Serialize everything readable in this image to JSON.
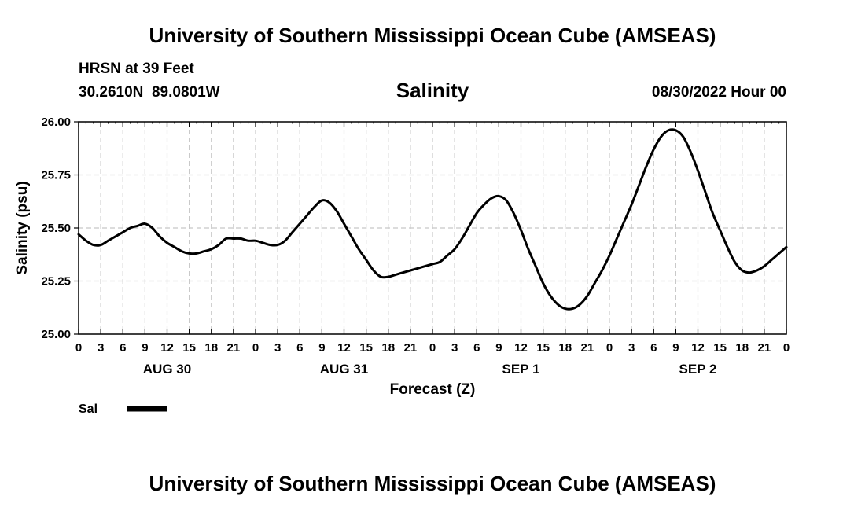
{
  "header": {
    "title": "University of Southern Mississippi Ocean Cube (AMSEAS)",
    "station": "HRSN at 39 Feet",
    "coords": "30.2610N  89.0801W",
    "variable": "Salinity",
    "datetime": "08/30/2022 Hour 00"
  },
  "footer": {
    "title": "University of Southern Mississippi Ocean Cube (AMSEAS)"
  },
  "legend": {
    "label": "Sal"
  },
  "chart_data": {
    "type": "line",
    "title": "Salinity",
    "xlabel": "Forecast (Z)",
    "ylabel": "Salinity (psu)",
    "xlim": [
      0,
      96
    ],
    "ylim": [
      25.0,
      26.0
    ],
    "yticks": [
      "25.00",
      "25.25",
      "25.50",
      "25.75",
      "26.00"
    ],
    "ytick_values": [
      25.0,
      25.25,
      25.5,
      25.75,
      26.0
    ],
    "xtick_labels": [
      "0",
      "3",
      "6",
      "9",
      "12",
      "15",
      "18",
      "21",
      "0",
      "3",
      "6",
      "9",
      "12",
      "15",
      "18",
      "21",
      "0",
      "3",
      "6",
      "9",
      "12",
      "15",
      "18",
      "21",
      "0",
      "3",
      "6",
      "9",
      "12",
      "15",
      "18",
      "21",
      "0"
    ],
    "day_labels": [
      {
        "label": "AUG 30",
        "hour": 12
      },
      {
        "label": "AUG 31",
        "hour": 36
      },
      {
        "label": "SEP 1",
        "hour": 60
      },
      {
        "label": "SEP 2",
        "hour": 84
      }
    ],
    "grid": true,
    "series": [
      {
        "name": "Sal",
        "x": [
          0,
          1,
          2,
          3,
          4,
          5,
          6,
          7,
          8,
          9,
          10,
          11,
          12,
          13,
          14,
          15,
          16,
          17,
          18,
          19,
          20,
          21,
          22,
          23,
          24,
          25,
          26,
          27,
          28,
          29,
          30,
          31,
          32,
          33,
          34,
          35,
          36,
          37,
          38,
          39,
          40,
          41,
          42,
          43,
          44,
          45,
          46,
          47,
          48,
          49,
          50,
          51,
          52,
          53,
          54,
          55,
          56,
          57,
          58,
          59,
          60,
          61,
          62,
          63,
          64,
          65,
          66,
          67,
          68,
          69,
          70,
          71,
          72,
          73,
          74,
          75,
          76,
          77,
          78,
          79,
          80,
          81,
          82,
          83,
          84,
          85,
          86,
          87,
          88,
          89,
          90,
          91,
          92,
          93,
          94,
          95,
          96
        ],
        "values": [
          25.47,
          25.44,
          25.42,
          25.42,
          25.44,
          25.46,
          25.48,
          25.5,
          25.51,
          25.52,
          25.5,
          25.46,
          25.43,
          25.41,
          25.39,
          25.38,
          25.38,
          25.39,
          25.4,
          25.42,
          25.45,
          25.45,
          25.45,
          25.44,
          25.44,
          25.43,
          25.42,
          25.42,
          25.44,
          25.48,
          25.52,
          25.56,
          25.6,
          25.63,
          25.62,
          25.58,
          25.52,
          25.46,
          25.4,
          25.35,
          25.3,
          25.27,
          25.27,
          25.28,
          25.29,
          25.3,
          25.31,
          25.32,
          25.33,
          25.34,
          25.37,
          25.4,
          25.45,
          25.51,
          25.57,
          25.61,
          25.64,
          25.65,
          25.63,
          25.57,
          25.49,
          25.4,
          25.32,
          25.24,
          25.18,
          25.14,
          25.12,
          25.12,
          25.14,
          25.18,
          25.24,
          25.3,
          25.37,
          25.45,
          25.53,
          25.61,
          25.7,
          25.79,
          25.87,
          25.93,
          25.96,
          25.96,
          25.93,
          25.86,
          25.77,
          25.67,
          25.57,
          25.49,
          25.41,
          25.34,
          25.3,
          25.29,
          25.3,
          25.32,
          25.35,
          25.38,
          25.41
        ]
      }
    ]
  }
}
